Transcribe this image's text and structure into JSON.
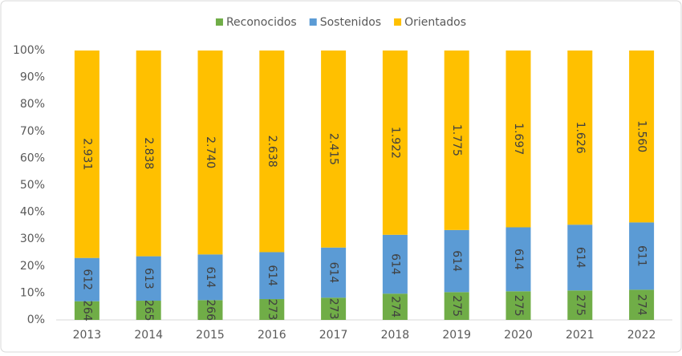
{
  "chart_data": {
    "type": "bar",
    "stacking": "percent",
    "categories": [
      "2013",
      "2014",
      "2015",
      "2016",
      "2017",
      "2018",
      "2019",
      "2020",
      "2021",
      "2022"
    ],
    "series": [
      {
        "name": "Reconocidos",
        "color": "#70ad47",
        "values": [
          264,
          265,
          266,
          273,
          273,
          274,
          275,
          275,
          275,
          274
        ]
      },
      {
        "name": "Sostenidos",
        "color": "#5b9bd5",
        "values": [
          612,
          613,
          614,
          614,
          614,
          614,
          614,
          614,
          614,
          611
        ]
      },
      {
        "name": "Orientados",
        "color": "#ffc000",
        "values": [
          2931,
          2838,
          2740,
          2638,
          2415,
          1922,
          1775,
          1697,
          1626,
          1560
        ],
        "value_labels": [
          "2.931",
          "2.838",
          "2.740",
          "2.638",
          "2.415",
          "1.922",
          "1.775",
          "1.697",
          "1.626",
          "1.560"
        ]
      }
    ],
    "ylim": [
      0,
      100
    ],
    "yticks": [
      {
        "value": 0,
        "label": "0%"
      },
      {
        "value": 10,
        "label": "10%"
      },
      {
        "value": 20,
        "label": "20%"
      },
      {
        "value": 30,
        "label": "30%"
      },
      {
        "value": 40,
        "label": "40%"
      },
      {
        "value": 50,
        "label": "50%"
      },
      {
        "value": 60,
        "label": "60%"
      },
      {
        "value": 70,
        "label": "70%"
      },
      {
        "value": 80,
        "label": "80%"
      },
      {
        "value": 90,
        "label": "90%"
      },
      {
        "value": 100,
        "label": "100%"
      }
    ],
    "legend": "top"
  }
}
